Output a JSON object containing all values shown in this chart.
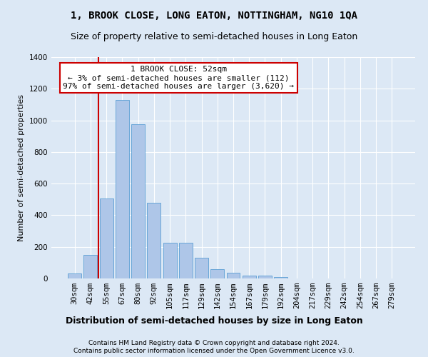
{
  "title": "1, BROOK CLOSE, LONG EATON, NOTTINGHAM, NG10 1QA",
  "subtitle": "Size of property relative to semi-detached houses in Long Eaton",
  "xlabel": "Distribution of semi-detached houses by size in Long Eaton",
  "ylabel": "Number of semi-detached properties",
  "footer1": "Contains HM Land Registry data © Crown copyright and database right 2024.",
  "footer2": "Contains public sector information licensed under the Open Government Licence v3.0.",
  "categories": [
    "30sqm",
    "42sqm",
    "55sqm",
    "67sqm",
    "80sqm",
    "92sqm",
    "105sqm",
    "117sqm",
    "129sqm",
    "142sqm",
    "154sqm",
    "167sqm",
    "179sqm",
    "192sqm",
    "204sqm",
    "217sqm",
    "229sqm",
    "242sqm",
    "254sqm",
    "267sqm",
    "279sqm"
  ],
  "values": [
    30,
    150,
    505,
    1130,
    975,
    480,
    225,
    225,
    130,
    60,
    35,
    20,
    18,
    10,
    0,
    0,
    0,
    0,
    0,
    0,
    0
  ],
  "bar_color": "#aec6e8",
  "bar_edge_color": "#5a9fd4",
  "vline_color": "#cc0000",
  "vline_x": 1.5,
  "annotation_text": "1 BROOK CLOSE: 52sqm\n← 3% of semi-detached houses are smaller (112)\n97% of semi-detached houses are larger (3,620) →",
  "annotation_box_color": "#ffffff",
  "annotation_box_edge": "#cc0000",
  "ylim": [
    0,
    1400
  ],
  "yticks": [
    0,
    200,
    400,
    600,
    800,
    1000,
    1200,
    1400
  ],
  "bg_color": "#dce8f5",
  "plot_bg_color": "#dce8f5",
  "title_fontsize": 10,
  "subtitle_fontsize": 9,
  "annotation_fontsize": 8,
  "ylabel_fontsize": 8,
  "xlabel_fontsize": 9,
  "tick_fontsize": 7.5,
  "footer_fontsize": 6.5
}
